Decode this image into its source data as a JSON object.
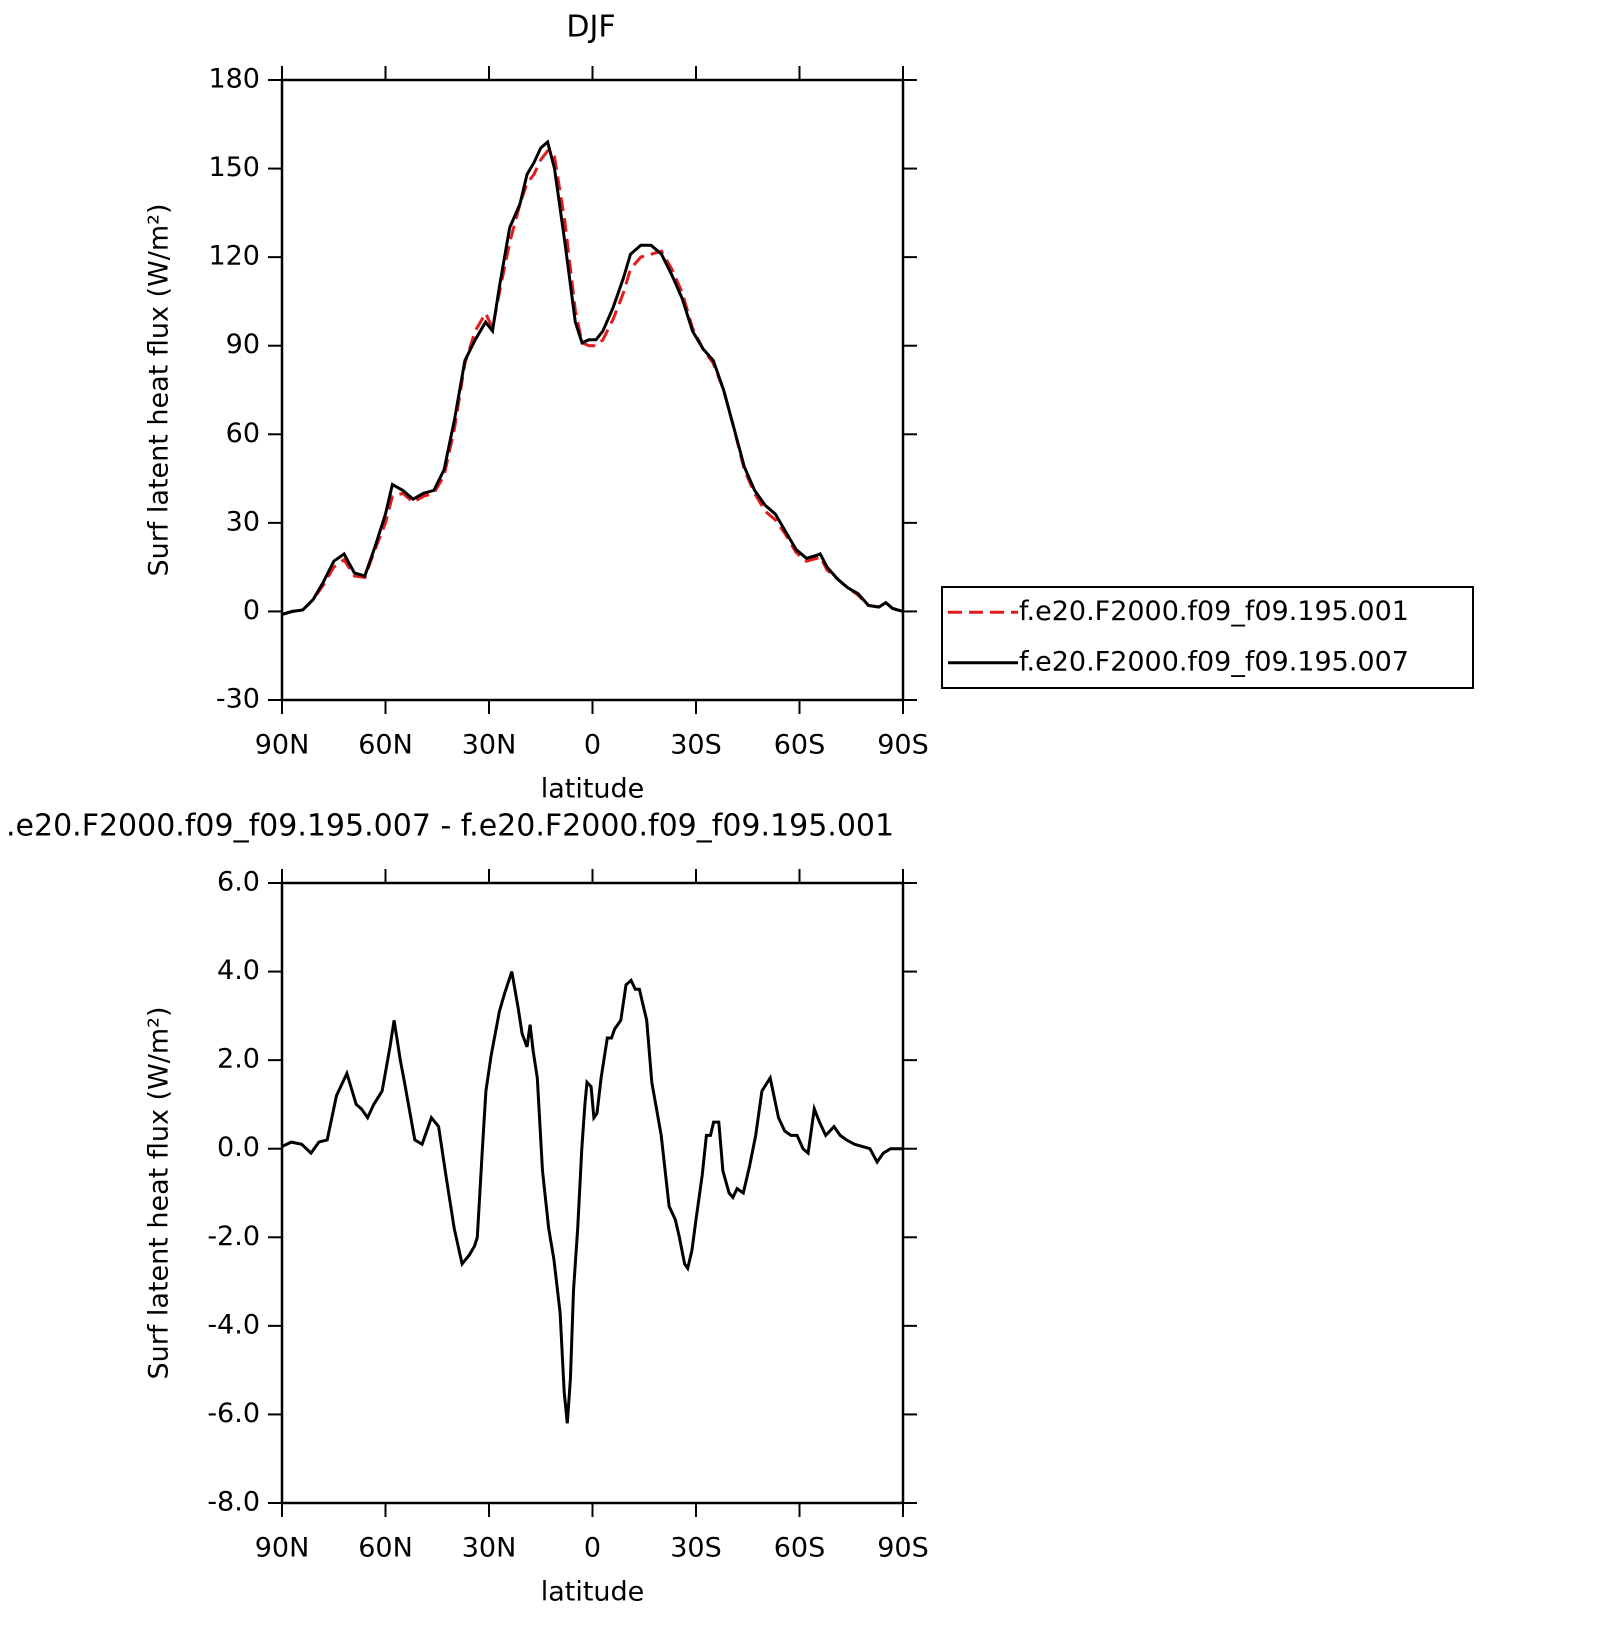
{
  "chart_data": [
    {
      "type": "line",
      "title": "DJF",
      "ylabel": "Surf latent heat flux (W/m²)",
      "xlabel": "latitude",
      "xlim": [
        90,
        -90
      ],
      "ylim": [
        -30,
        180
      ],
      "xticks": [
        {
          "value": 90,
          "label": "90N"
        },
        {
          "value": 60,
          "label": "60N"
        },
        {
          "value": 30,
          "label": "30N"
        },
        0,
        {
          "value": -30,
          "label": "30S"
        },
        {
          "value": -60,
          "label": "60S"
        },
        {
          "value": -90,
          "label": "90S"
        }
      ],
      "yticks": [
        -30,
        0,
        30,
        60,
        90,
        120,
        150,
        180
      ],
      "series": [
        {
          "name": "f.e20.F2000.f09_f09.195.001",
          "color": "#e41a1c",
          "dash": "dashed",
          "x": [
            90,
            87,
            84,
            81,
            78,
            75,
            72,
            69,
            66,
            63,
            60,
            58,
            55,
            52,
            49,
            46,
            43,
            40,
            37,
            34,
            31,
            29,
            27,
            24,
            21,
            19,
            17,
            15,
            13,
            11,
            8,
            5,
            3,
            1,
            -1,
            -3,
            -6,
            -9,
            -11,
            -14,
            -17,
            -20,
            -23,
            -26,
            -29,
            -32,
            -35,
            -38,
            -41,
            -44,
            -47,
            -50,
            -53,
            -56,
            -59,
            -62,
            -65,
            -66,
            -68,
            -71,
            -74,
            -77,
            -80,
            -83,
            -85,
            -87,
            -90
          ],
          "values": [
            -1,
            0,
            0.5,
            4,
            9,
            15,
            17.5,
            12,
            11.5,
            21,
            30,
            39,
            40,
            37,
            39,
            40,
            46,
            62,
            84,
            95,
            101,
            96,
            108,
            125,
            138,
            145,
            148,
            153,
            156,
            154,
            132,
            102,
            91,
            90,
            90,
            92,
            99,
            108,
            116,
            120,
            121,
            122,
            116,
            108,
            96,
            89,
            84,
            75,
            62,
            48,
            40,
            34,
            31,
            26,
            20,
            17,
            18,
            18.5,
            14,
            11,
            8,
            5.5,
            2,
            1.5,
            3,
            1,
            0
          ]
        },
        {
          "name": "f.e20.F2000.f09_f09.195.007",
          "color": "#000000",
          "dash": "solid",
          "x": [
            90,
            87,
            84,
            81,
            78,
            75,
            72,
            69,
            66,
            63,
            60,
            58,
            55,
            52,
            49,
            46,
            43,
            40,
            37,
            34,
            31,
            29,
            27,
            24,
            21,
            19,
            17,
            15,
            13,
            11,
            8,
            5,
            3,
            1,
            -1,
            -3,
            -6,
            -9,
            -11,
            -14,
            -17,
            -20,
            -23,
            -26,
            -29,
            -32,
            -35,
            -38,
            -41,
            -44,
            -47,
            -50,
            -53,
            -56,
            -59,
            -62,
            -65,
            -66,
            -68,
            -71,
            -74,
            -77,
            -80,
            -83,
            -85,
            -87,
            -90
          ],
          "values": [
            -1,
            0,
            0.5,
            4,
            10,
            17,
            19.5,
            13,
            12,
            22,
            33,
            43,
            41,
            38,
            40,
            41,
            48,
            65,
            85,
            92,
            98,
            95,
            110,
            130,
            138,
            148,
            152,
            157,
            159,
            150,
            125,
            98,
            91,
            92,
            92,
            95,
            103,
            113,
            121,
            124,
            124,
            121,
            114,
            106,
            95,
            89,
            85,
            75,
            62,
            49,
            41,
            36,
            33,
            27,
            21,
            18,
            19,
            19.5,
            15,
            11,
            8,
            6,
            2,
            1.5,
            3,
            1,
            0
          ]
        }
      ]
    },
    {
      "type": "line",
      "title": ".e20.F2000.f09_f09.195.007 - f.e20.F2000.f09_f09.195.001",
      "ylabel": "Surf latent heat flux (W/m²)",
      "xlabel": "latitude",
      "xlim": [
        90,
        -90
      ],
      "ylim": [
        -8,
        6
      ],
      "xticks": [
        {
          "value": 90,
          "label": "90N"
        },
        {
          "value": 60,
          "label": "60N"
        },
        {
          "value": 30,
          "label": "30N"
        },
        0,
        {
          "value": -30,
          "label": "30S"
        },
        {
          "value": -60,
          "label": "60S"
        },
        {
          "value": -90,
          "label": "90S"
        }
      ],
      "yticks": [
        {
          "value": -8,
          "label": "-8.0"
        },
        {
          "value": -6,
          "label": "-6.0"
        },
        {
          "value": -4,
          "label": "-4.0"
        },
        {
          "value": -2,
          "label": "-2.0"
        },
        {
          "value": 0,
          "label": "0.0"
        },
        {
          "value": 2,
          "label": "2.0"
        },
        {
          "value": 4,
          "label": "4.0"
        },
        {
          "value": 6,
          "label": "6.0"
        }
      ],
      "series": [
        {
          "color": "#000000",
          "dash": "solid",
          "x": [
            90,
            87.3,
            84.3,
            81.6,
            79.3,
            76.9,
            74.2,
            71.2,
            68.5,
            67.0,
            65.2,
            63.4,
            61.0,
            58.7,
            57.5,
            55.7,
            54.5,
            51.5,
            49.4,
            46.7,
            44.6,
            42.5,
            40.1,
            37.8,
            35.7,
            34.2,
            33.4,
            31.9,
            30.9,
            29.4,
            27.0,
            25.5,
            23.4,
            21.6,
            20.4,
            19.0,
            18.1,
            17.2,
            16.0,
            14.5,
            12.7,
            11.2,
            9.4,
            8.2,
            7.3,
            6.4,
            5.5,
            4.3,
            3.1,
            2.2,
            1.6,
            0.4,
            -0.4,
            -1.3,
            -2.5,
            -4.3,
            -5.5,
            -6.4,
            -8.2,
            -9.7,
            -11.2,
            -12.4,
            -13.6,
            -14.5,
            -15.7,
            -17.2,
            -19.9,
            -22.2,
            -24.0,
            -25.2,
            -26.7,
            -27.6,
            -28.8,
            -30.0,
            -31.8,
            -33.0,
            -34.2,
            -35.1,
            -36.6,
            -37.8,
            -39.6,
            -40.7,
            -41.9,
            -43.7,
            -45.5,
            -47.3,
            -49.1,
            -51.5,
            -53.9,
            -55.7,
            -57.5,
            -59.3,
            -61.0,
            -62.5,
            -64.3,
            -65.8,
            -67.6,
            -70.0,
            -71.8,
            -73.6,
            -76.0,
            -80.4,
            -82.5,
            -84.3,
            -86.4,
            -90
          ],
          "values": [
            0.05,
            0.15,
            0.1,
            -0.1,
            0.15,
            0.2,
            1.2,
            1.7,
            1.0,
            0.9,
            0.7,
            1.0,
            1.3,
            2.3,
            2.9,
            2.0,
            1.5,
            0.2,
            0.1,
            0.7,
            0.5,
            -0.6,
            -1.8,
            -2.6,
            -2.4,
            -2.2,
            -2.0,
            0,
            1.3,
            2.1,
            3.1,
            3.5,
            4.0,
            3.2,
            2.6,
            2.3,
            2.8,
            2.2,
            1.6,
            -0.5,
            -1.8,
            -2.5,
            -3.7,
            -5.5,
            -6.2,
            -5.2,
            -3.2,
            -1.8,
            0.0,
            1.0,
            1.5,
            1.4,
            0.7,
            0.8,
            1.6,
            2.5,
            2.5,
            2.7,
            2.9,
            3.7,
            3.8,
            3.6,
            3.6,
            3.3,
            2.9,
            1.5,
            0.3,
            -1.3,
            -1.6,
            -2.0,
            -2.6,
            -2.7,
            -2.3,
            -1.6,
            -0.6,
            0.3,
            0.3,
            0.6,
            0.6,
            -0.5,
            -1.0,
            -1.1,
            -0.9,
            -1.0,
            -0.4,
            0.3,
            1.3,
            1.6,
            0.7,
            0.4,
            0.3,
            0.3,
            0.0,
            -0.1,
            0.9,
            0.6,
            0.3,
            0.5,
            0.3,
            0.2,
            0.1,
            0.0,
            -0.3,
            -0.1,
            0.0,
            0.0
          ]
        }
      ]
    }
  ]
}
